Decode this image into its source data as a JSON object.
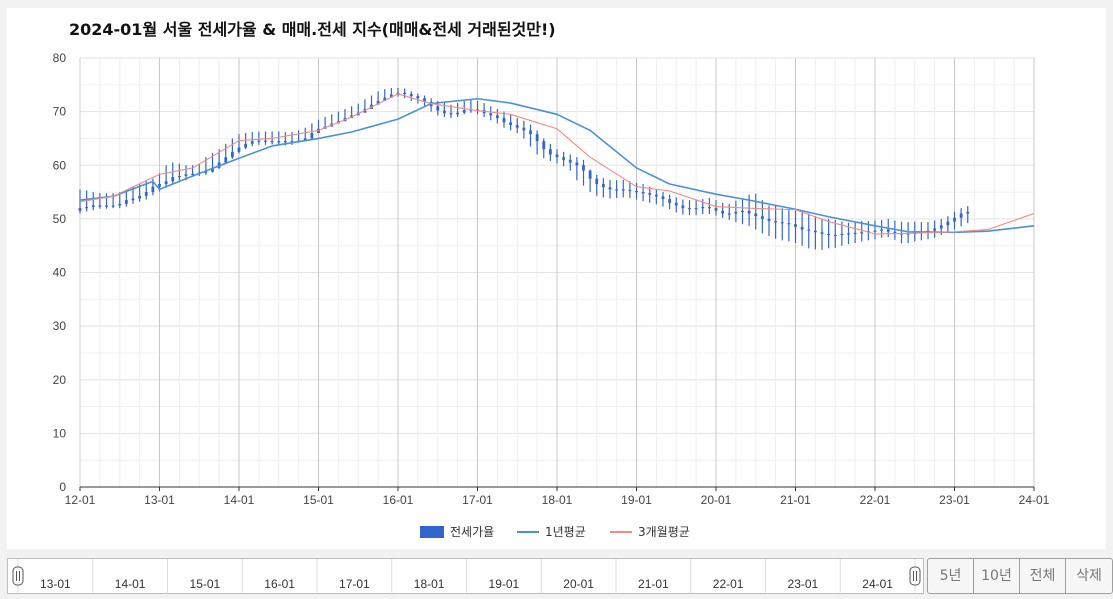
{
  "chart_data": {
    "type": "candlestick+line",
    "title": "2024-01월 서울 전세가율 & 매매.전세 지수(매매&전세 거래된것만!)",
    "xlabel": "",
    "ylabel": "",
    "ylim": [
      0,
      80
    ],
    "yticks": [
      "0",
      "10",
      "20",
      "30",
      "40",
      "50",
      "60",
      "70",
      "80"
    ],
    "xlim": [
      "2012-01",
      "2024-01"
    ],
    "xticks": [
      "12-01",
      "13-01",
      "14-01",
      "15-01",
      "16-01",
      "17-01",
      "18-01",
      "19-01",
      "20-01",
      "21-01",
      "22-01",
      "23-01",
      "24-01"
    ],
    "grid": true,
    "legend_position": "bottom",
    "legend": [
      {
        "name": "전세가율",
        "color": "#3366cc",
        "kind": "box"
      },
      {
        "name": "1년평균",
        "color": "#4a90e2",
        "kind": "line"
      },
      {
        "name": "3개월평균",
        "color": "#f28b82",
        "kind": "line"
      }
    ],
    "candles": {
      "name": "전세가율",
      "color": "#3366cc",
      "start": "2012-01",
      "interval": "month",
      "open": [
        51.5,
        52.0,
        52.2,
        52.5,
        52.5,
        52.5,
        52.5,
        52.8,
        53.5,
        53.8,
        54.3,
        55.0,
        56.0,
        56.5,
        57.0,
        57.8,
        58.0,
        58.3,
        58.4,
        58.6,
        58.8,
        59.5,
        60.5,
        61.5,
        62.5,
        63.3,
        64.0,
        64.5,
        64.6,
        64.5,
        64.5,
        64.5,
        64.5,
        64.5,
        64.6,
        65.0,
        66.0,
        66.8,
        67.2,
        67.8,
        68.2,
        68.8,
        69.3,
        69.8,
        70.5,
        71.3,
        72.0,
        72.6,
        73.2,
        73.5,
        73.3,
        72.9,
        72.5,
        71.8,
        71.0,
        70.2,
        69.7,
        69.5,
        69.8,
        70.3,
        70.4,
        70.3,
        69.7,
        69.3,
        68.8,
        68.0,
        67.5,
        67.0,
        66.5,
        65.8,
        64.5,
        63.0,
        62.0,
        61.5,
        61.0,
        60.5,
        60.0,
        59.0,
        57.5,
        56.5,
        55.9,
        55.5,
        55.5,
        55.4,
        55.2,
        55.0,
        54.8,
        54.5,
        54.2,
        53.7,
        53.0,
        52.5,
        52.0,
        52.0,
        52.0,
        52.2,
        52.0,
        51.5,
        51.0,
        51.0,
        51.3,
        51.5,
        51.0,
        50.5,
        50.0,
        49.6,
        49.4,
        49.2,
        49.0,
        48.5,
        48.0,
        47.8,
        47.5,
        47.2,
        47.0,
        47.0,
        47.2,
        47.3,
        47.4,
        47.5,
        47.7,
        47.8,
        48.0,
        47.6,
        47.3,
        47.2,
        47.3,
        47.4,
        47.5,
        47.8,
        48.2,
        48.8,
        49.5,
        50.2,
        51.0
      ],
      "high": [
        55.5,
        55.3,
        55.0,
        54.8,
        54.8,
        54.8,
        55.0,
        55.5,
        56.0,
        56.5,
        57.0,
        57.5,
        58.5,
        60.0,
        60.5,
        60.3,
        60.0,
        60.0,
        60.2,
        61.5,
        62.3,
        63.0,
        64.0,
        65.0,
        65.8,
        66.0,
        66.2,
        66.3,
        66.3,
        66.3,
        66.3,
        66.2,
        66.2,
        66.5,
        67.0,
        67.8,
        68.5,
        69.0,
        69.5,
        70.0,
        70.5,
        71.0,
        71.5,
        72.3,
        73.0,
        73.8,
        74.2,
        74.4,
        74.4,
        74.3,
        73.8,
        73.4,
        73.0,
        72.5,
        72.0,
        71.6,
        71.3,
        71.6,
        72.0,
        72.2,
        72.0,
        71.6,
        71.0,
        70.5,
        70.0,
        69.4,
        68.8,
        68.3,
        67.6,
        66.5,
        65.0,
        64.0,
        63.0,
        62.5,
        62.0,
        61.5,
        61.0,
        59.2,
        58.2,
        57.6,
        57.3,
        57.2,
        57.3,
        57.0,
        56.7,
        56.5,
        56.0,
        55.5,
        55.0,
        54.5,
        54.0,
        53.6,
        53.5,
        53.6,
        53.7,
        53.9,
        53.5,
        53.0,
        52.8,
        53.4,
        53.8,
        54.5,
        54.7,
        53.5,
        52.5,
        52.5,
        52.0,
        51.7,
        51.5,
        51.2,
        51.0,
        50.5,
        50.0,
        50.0,
        49.8,
        49.5,
        49.3,
        49.5,
        49.6,
        49.6,
        49.7,
        49.8,
        50.0,
        49.7,
        49.5,
        49.4,
        49.5,
        49.4,
        49.4,
        49.7,
        50.0,
        50.5,
        51.3,
        52.0,
        52.4
      ],
      "low": [
        51.0,
        51.4,
        51.6,
        51.9,
        51.9,
        52.0,
        52.0,
        52.3,
        52.8,
        53.2,
        53.6,
        54.4,
        55.1,
        55.8,
        56.5,
        56.8,
        57.2,
        57.8,
        58.0,
        58.2,
        58.6,
        59.3,
        60.2,
        61.2,
        62.2,
        63.0,
        63.5,
        63.8,
        63.8,
        63.9,
        63.8,
        63.7,
        63.8,
        64.2,
        64.8,
        65.6,
        66.4,
        67.0,
        67.5,
        68.0,
        68.5,
        69.0,
        69.5,
        70.0,
        70.8,
        71.5,
        72.1,
        72.6,
        72.8,
        72.5,
        72.0,
        71.5,
        70.8,
        70.0,
        69.3,
        69.0,
        68.8,
        69.0,
        69.5,
        69.8,
        69.5,
        69.0,
        68.4,
        67.8,
        67.0,
        66.5,
        66.0,
        65.0,
        63.5,
        62.0,
        61.3,
        60.8,
        60.3,
        59.8,
        59.0,
        57.2,
        56.2,
        55.0,
        54.3,
        54.0,
        53.8,
        53.9,
        54.0,
        53.9,
        53.6,
        53.3,
        53.0,
        52.7,
        52.3,
        51.8,
        51.2,
        50.8,
        50.7,
        50.7,
        50.9,
        50.9,
        50.6,
        50.2,
        49.8,
        49.4,
        49.0,
        48.7,
        48.0,
        47.3,
        46.8,
        46.3,
        46.0,
        45.8,
        45.5,
        45.0,
        44.5,
        44.3,
        44.2,
        44.5,
        44.6,
        45.0,
        45.3,
        45.5,
        45.8,
        46.0,
        46.2,
        46.5,
        46.6,
        46.1,
        45.4,
        45.5,
        45.8,
        46.0,
        46.2,
        46.5,
        47.0,
        47.5,
        48.0,
        48.6,
        49.2
      ],
      "close": [
        52.0,
        52.2,
        52.5,
        52.5,
        52.5,
        52.5,
        52.8,
        53.5,
        53.8,
        54.3,
        55.0,
        56.0,
        56.5,
        57.0,
        57.8,
        58.0,
        58.3,
        58.4,
        58.6,
        58.8,
        59.5,
        60.5,
        61.5,
        62.5,
        63.3,
        64.0,
        64.5,
        64.6,
        64.5,
        64.5,
        64.5,
        64.5,
        64.5,
        64.6,
        65.0,
        66.0,
        66.8,
        67.2,
        67.8,
        68.2,
        68.8,
        69.3,
        69.8,
        70.5,
        71.3,
        72.0,
        72.6,
        73.2,
        73.5,
        73.3,
        72.9,
        72.5,
        71.8,
        71.0,
        70.2,
        69.7,
        69.5,
        69.8,
        70.3,
        70.4,
        70.3,
        69.7,
        69.3,
        68.8,
        68.0,
        67.5,
        67.0,
        66.5,
        65.8,
        64.5,
        63.0,
        62.0,
        61.5,
        61.0,
        60.5,
        60.0,
        59.0,
        57.5,
        56.5,
        55.9,
        55.5,
        55.5,
        55.4,
        55.2,
        55.0,
        54.8,
        54.5,
        54.2,
        53.7,
        53.0,
        52.5,
        52.0,
        52.0,
        52.0,
        52.2,
        52.0,
        51.5,
        51.0,
        51.0,
        51.3,
        51.5,
        51.0,
        50.5,
        50.0,
        49.6,
        49.4,
        49.2,
        49.0,
        48.5,
        48.0,
        47.8,
        47.5,
        47.2,
        47.0,
        47.0,
        47.2,
        47.3,
        47.4,
        47.5,
        47.7,
        47.8,
        48.0,
        47.6,
        47.3,
        47.2,
        47.3,
        47.4,
        47.5,
        47.8,
        48.2,
        48.8,
        49.5,
        50.2,
        51.0,
        51.3
      ]
    },
    "series": [
      {
        "name": "1년평균",
        "color": "#4a90e2",
        "x": [
          "2012-01",
          "2012-06",
          "2012-12",
          "2013-01",
          "2013-06",
          "2014-01",
          "2014-06",
          "2015-01",
          "2015-06",
          "2016-01",
          "2016-06",
          "2017-01",
          "2017-06",
          "2018-01",
          "2018-06",
          "2019-01",
          "2019-06",
          "2020-01",
          "2020-06",
          "2021-01",
          "2021-06",
          "2022-01",
          "2022-06",
          "2023-01",
          "2023-06",
          "2024-01"
        ],
        "y": [
          53.5,
          54.2,
          57.0,
          55.5,
          58.0,
          61.3,
          63.6,
          65.0,
          66.2,
          68.6,
          71.5,
          72.4,
          71.6,
          69.5,
          66.5,
          59.5,
          56.5,
          54.6,
          53.5,
          51.8,
          50.4,
          48.7,
          47.6,
          47.5,
          47.7,
          48.7
        ]
      },
      {
        "name": "3개월평균",
        "color": "#f28b82",
        "x": [
          "2012-01",
          "2012-06",
          "2013-01",
          "2013-06",
          "2014-01",
          "2014-06",
          "2015-01",
          "2015-06",
          "2016-01",
          "2016-06",
          "2017-01",
          "2017-06",
          "2018-01",
          "2018-06",
          "2019-01",
          "2019-06",
          "2020-01",
          "2020-06",
          "2021-01",
          "2021-06",
          "2022-01",
          "2022-06",
          "2023-01",
          "2023-06",
          "2024-01"
        ],
        "y": [
          53.2,
          54.2,
          58.3,
          59.5,
          64.6,
          65.0,
          66.5,
          69.0,
          73.3,
          71.5,
          70.2,
          69.5,
          66.8,
          61.5,
          56.0,
          55.2,
          52.3,
          52.0,
          51.7,
          49.5,
          47.2,
          47.3,
          47.6,
          48.0,
          51.0
        ]
      }
    ]
  },
  "navigator": {
    "labels": [
      "13-01",
      "14-01",
      "15-01",
      "16-01",
      "17-01",
      "18-01",
      "19-01",
      "20-01",
      "21-01",
      "22-01",
      "23-01",
      "24-01"
    ]
  },
  "range_buttons": [
    "5년",
    "10년",
    "전체",
    "삭제"
  ]
}
